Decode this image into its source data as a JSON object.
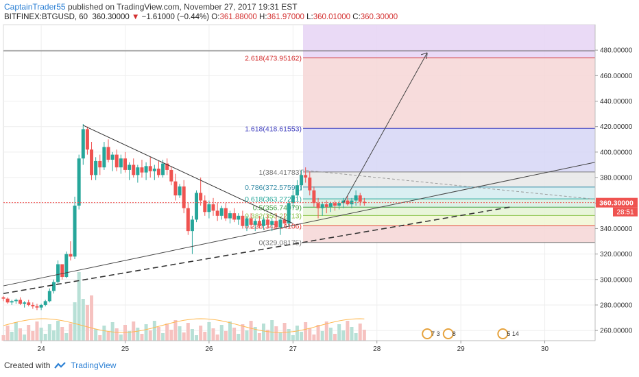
{
  "header": {
    "author": "CaptainTrader55",
    "published_text": "published on TradingView.com, November 27, 2017 19:31 EST",
    "symbol": "BITFINEX:BTGUSD, 60",
    "price": "360.30000",
    "change": "−1.61000 (−0.44%)",
    "o_label": "O:",
    "o_value": "361.88000",
    "h_label": "H:",
    "h_value": "361.97000",
    "l_label": "L:",
    "l_value": "360.01000",
    "c_label": "C:",
    "c_value": "360.30000"
  },
  "footer": {
    "created_with": "Created with",
    "brand": "TradingView"
  },
  "chart_data": {
    "type": "candlestick",
    "y_ticks": [
      "260.00000",
      "280.00000",
      "300.00000",
      "320.00000",
      "340.00000",
      "360.00000",
      "380.00000",
      "400.00000",
      "420.00000",
      "440.00000",
      "460.00000",
      "480.00000"
    ],
    "y_tick_values": [
      260,
      280,
      300,
      320,
      340,
      360,
      380,
      400,
      420,
      440,
      460,
      480
    ],
    "x_ticks": [
      "24",
      "25",
      "26",
      "27",
      "28",
      "29",
      "30"
    ],
    "x_tick_values": [
      24,
      25,
      26,
      27,
      28,
      29,
      30
    ],
    "xlim": [
      23.55,
      30.6
    ],
    "ylim": [
      252,
      500
    ],
    "current_price_label": "360.30000",
    "current_price": 360.3,
    "countdown_label": "28:51",
    "fib_levels": [
      {
        "label": "2.618(473.95162)",
        "value": 473.95162,
        "color": "#d32f2f"
      },
      {
        "label": "1.618(418.61553)",
        "value": 418.61553,
        "color": "#3f3fbf"
      },
      {
        "label": "1(384.41783)",
        "value": 384.41783,
        "color": "#777777"
      },
      {
        "label": "0.786(372.57591)",
        "value": 372.57591,
        "color": "#3a8fa8"
      },
      {
        "label": "0.618(363.27221)",
        "value": 363.27221,
        "color": "#26a69a"
      },
      {
        "label": "0.5(356.74979)",
        "value": 356.74979,
        "color": "#43a047"
      },
      {
        "label": "0.382(350.22713)",
        "value": 350.22713,
        "color": "#8bc34a"
      },
      {
        "label": "0.236(342.14106)",
        "value": 342.14106,
        "color": "#e53935"
      },
      {
        "label": "0(329.08175)",
        "value": 329.08175,
        "color": "#777777"
      }
    ],
    "resistance_line": 479.5,
    "event_markers": [
      "7 3",
      "8",
      "5 14"
    ],
    "colors": {
      "up": "#26a69a",
      "down": "#ef5350",
      "violet": "#e6d4f4",
      "red_zone": "#f6d6d6",
      "blue_zone": "#d6d6f6",
      "grey_zone": "#e8e8e8",
      "green_zone": "#dff0d6"
    },
    "candles": [
      [
        23.55,
        286,
        287,
        283,
        285
      ],
      [
        23.6,
        285,
        286,
        281,
        282
      ],
      [
        23.65,
        282,
        284,
        280,
        283
      ],
      [
        23.7,
        283,
        285,
        281,
        284
      ],
      [
        23.75,
        284,
        286,
        280,
        281
      ],
      [
        23.8,
        281,
        283,
        278,
        282
      ],
      [
        23.85,
        282,
        284,
        279,
        280
      ],
      [
        23.9,
        280,
        282,
        277,
        279
      ],
      [
        23.95,
        279,
        281,
        276,
        278
      ],
      [
        24.0,
        278,
        281,
        276,
        280
      ],
      [
        24.05,
        280,
        284,
        279,
        283
      ],
      [
        24.1,
        283,
        293,
        282,
        291
      ],
      [
        24.15,
        291,
        300,
        289,
        298
      ],
      [
        24.2,
        298,
        315,
        296,
        312
      ],
      [
        24.25,
        312,
        310,
        300,
        302
      ],
      [
        24.3,
        302,
        322,
        301,
        320
      ],
      [
        24.35,
        320,
        330,
        315,
        318
      ],
      [
        24.4,
        318,
        365,
        316,
        358
      ],
      [
        24.45,
        358,
        398,
        355,
        395
      ],
      [
        24.5,
        395,
        422,
        390,
        418
      ],
      [
        24.55,
        418,
        420,
        398,
        402
      ],
      [
        24.6,
        402,
        408,
        378,
        382
      ],
      [
        24.65,
        382,
        396,
        378,
        393
      ],
      [
        24.7,
        393,
        398,
        382,
        388
      ],
      [
        24.75,
        388,
        408,
        386,
        404
      ],
      [
        24.8,
        404,
        410,
        392,
        394
      ],
      [
        24.85,
        394,
        400,
        385,
        398
      ],
      [
        24.9,
        398,
        402,
        385,
        388
      ],
      [
        24.95,
        388,
        398,
        383,
        395
      ],
      [
        25.0,
        395,
        400,
        384,
        386
      ],
      [
        25.05,
        386,
        392,
        378,
        390
      ],
      [
        25.1,
        390,
        395,
        380,
        382
      ],
      [
        25.15,
        382,
        390,
        376,
        388
      ],
      [
        25.2,
        388,
        394,
        380,
        384
      ],
      [
        25.25,
        384,
        392,
        378,
        389
      ],
      [
        25.3,
        389,
        396,
        380,
        385
      ],
      [
        25.35,
        385,
        390,
        378,
        387
      ],
      [
        25.4,
        387,
        393,
        380,
        382
      ],
      [
        25.45,
        382,
        394,
        380,
        391
      ],
      [
        25.5,
        391,
        395,
        382,
        386
      ],
      [
        25.55,
        386,
        389,
        374,
        377
      ],
      [
        25.6,
        377,
        383,
        362,
        366
      ],
      [
        25.65,
        366,
        375,
        364,
        373
      ],
      [
        25.7,
        373,
        378,
        352,
        356
      ],
      [
        25.75,
        356,
        360,
        335,
        338
      ],
      [
        25.8,
        338,
        350,
        320,
        347
      ],
      [
        25.85,
        347,
        370,
        345,
        368
      ],
      [
        25.9,
        368,
        380,
        358,
        362
      ],
      [
        25.95,
        362,
        366,
        350,
        353
      ],
      [
        26.0,
        353,
        362,
        348,
        359
      ],
      [
        26.05,
        359,
        364,
        350,
        354
      ],
      [
        26.1,
        354,
        360,
        346,
        350
      ],
      [
        26.15,
        350,
        358,
        347,
        356
      ],
      [
        26.2,
        356,
        360,
        346,
        348
      ],
      [
        26.25,
        348,
        354,
        344,
        352
      ],
      [
        26.3,
        352,
        356,
        345,
        347
      ],
      [
        26.35,
        347,
        352,
        343,
        350
      ],
      [
        26.4,
        350,
        354,
        340,
        342
      ],
      [
        26.45,
        342,
        350,
        338,
        348
      ],
      [
        26.5,
        348,
        352,
        340,
        343
      ],
      [
        26.55,
        343,
        348,
        338,
        346
      ],
      [
        26.6,
        346,
        350,
        340,
        342
      ],
      [
        26.65,
        342,
        349,
        339,
        347
      ],
      [
        26.7,
        347,
        351,
        340,
        343
      ],
      [
        26.75,
        343,
        348,
        338,
        346
      ],
      [
        26.8,
        346,
        352,
        340,
        341
      ],
      [
        26.85,
        341,
        348,
        335,
        347
      ],
      [
        26.9,
        347,
        352,
        341,
        344
      ],
      [
        26.95,
        344,
        362,
        342,
        360
      ],
      [
        27.0,
        360,
        370,
        356,
        366
      ],
      [
        27.05,
        366,
        378,
        362,
        374
      ],
      [
        27.1,
        374,
        386,
        370,
        382
      ],
      [
        27.15,
        382,
        388,
        376,
        380
      ],
      [
        27.2,
        380,
        385,
        366,
        370
      ],
      [
        27.25,
        370,
        373,
        357,
        360
      ],
      [
        27.3,
        360,
        364,
        348,
        356
      ],
      [
        27.35,
        356,
        361,
        350,
        359
      ],
      [
        27.4,
        359,
        362,
        352,
        357
      ],
      [
        27.45,
        357,
        361,
        353,
        360
      ],
      [
        27.5,
        360,
        362,
        354,
        358
      ],
      [
        27.55,
        358,
        362,
        355,
        360
      ],
      [
        27.6,
        360,
        364,
        356,
        362
      ],
      [
        27.65,
        362,
        366,
        358,
        359
      ],
      [
        27.7,
        359,
        364,
        356,
        362
      ],
      [
        27.75,
        362,
        370,
        358,
        366
      ],
      [
        27.8,
        366,
        368,
        358,
        361
      ],
      [
        27.85,
        361,
        364,
        358,
        360
      ]
    ]
  }
}
